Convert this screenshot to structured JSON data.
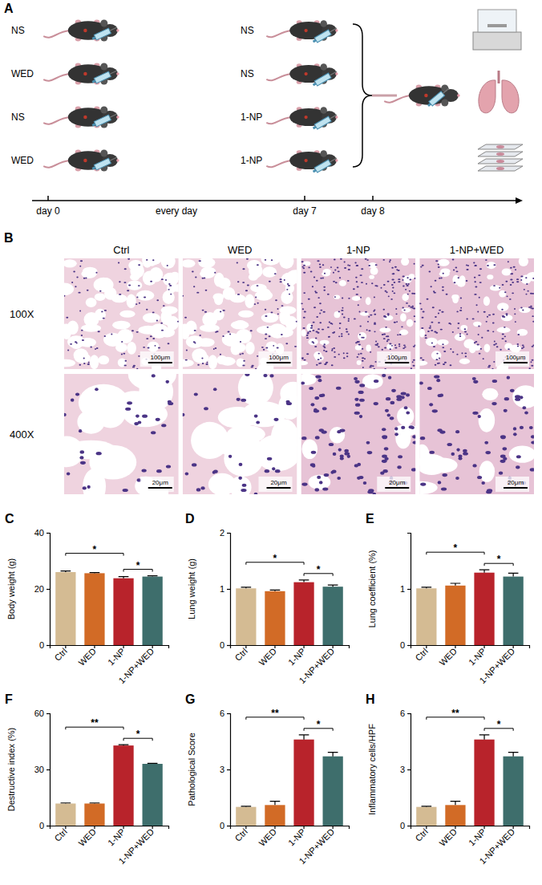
{
  "panel_labels": [
    "A",
    "B",
    "C",
    "D",
    "E",
    "F",
    "G",
    "H"
  ],
  "diagram": {
    "groups_pretreatment": [
      "NS",
      "WED",
      "NS",
      "WED"
    ],
    "groups_challenge": [
      "NS",
      "NS",
      "1-NP",
      "1-NP"
    ],
    "timeline": [
      "day 0",
      "every day",
      "day 7",
      "day 8"
    ]
  },
  "images": {
    "columns": [
      "Ctrl",
      "WED",
      "1-NP",
      "1-NP+WED"
    ],
    "rows": [
      "100X",
      "400X"
    ],
    "scale_bars": [
      "100μm",
      "20μm"
    ]
  },
  "chart_data": [
    {
      "type": "bar",
      "y_label": "Body weight (g)",
      "categories": [
        "Ctrl",
        "WED",
        "1-NP",
        "1-NP+WED"
      ],
      "values": [
        26,
        25.6,
        23.8,
        24.4
      ],
      "errors": [
        0.4,
        0.2,
        0.6,
        0.3
      ],
      "colors": [
        "#D4BB93",
        "#D26B26",
        "#B8232B",
        "#3E6E6C"
      ],
      "ylim": [
        0,
        40
      ],
      "yticks": [
        0,
        20,
        40
      ],
      "annotations": [
        {
          "between": [
            "Ctrl",
            "1-NP"
          ],
          "text": "*"
        },
        {
          "between": [
            "1-NP",
            "1-NP+WED"
          ],
          "text": "*"
        }
      ]
    },
    {
      "type": "bar",
      "y_label": "Lung weight (g)",
      "categories": [
        "Ctrl",
        "WED",
        "1-NP",
        "1-NP+WED"
      ],
      "values": [
        1.01,
        0.96,
        1.12,
        1.04
      ],
      "errors": [
        0.02,
        0.02,
        0.04,
        0.03
      ],
      "colors": [
        "#D4BB93",
        "#D26B26",
        "#B8232B",
        "#3E6E6C"
      ],
      "ylim": [
        0,
        2
      ],
      "yticks": [
        0,
        1,
        2
      ],
      "annotations": [
        {
          "between": [
            "Ctrl",
            "1-NP"
          ],
          "text": "*"
        },
        {
          "between": [
            "1-NP",
            "1-NP+WED"
          ],
          "text": "*"
        }
      ]
    },
    {
      "type": "bar",
      "y_label": "Lung coefficient (%)",
      "categories": [
        "Ctrl",
        "WED",
        "1-NP",
        "1-NP+WED"
      ],
      "values": [
        1.01,
        1.06,
        1.29,
        1.22
      ],
      "errors": [
        0.02,
        0.04,
        0.05,
        0.06
      ],
      "colors": [
        "#D4BB93",
        "#D26B26",
        "#B8232B",
        "#3E6E6C"
      ],
      "ylim": [
        0,
        2
      ],
      "yticks": [
        0,
        1
      ],
      "annotations": [
        {
          "between": [
            "Ctrl",
            "1-NP"
          ],
          "text": "*"
        },
        {
          "between": [
            "1-NP",
            "1-NP+WED"
          ],
          "text": "*"
        }
      ]
    },
    {
      "type": "bar",
      "y_label": "Destructive index (%)",
      "categories": [
        "Ctrl",
        "WED",
        "1-NP",
        "1-NP+WED"
      ],
      "values": [
        11.8,
        11.8,
        42.8,
        33
      ],
      "errors": [
        0.3,
        0.3,
        0.4,
        0.3
      ],
      "colors": [
        "#D4BB93",
        "#D26B26",
        "#B8232B",
        "#3E6E6C"
      ],
      "ylim": [
        0,
        60
      ],
      "yticks": [
        0,
        30,
        60
      ],
      "annotations": [
        {
          "between": [
            "Ctrl",
            "1-NP"
          ],
          "text": "**"
        },
        {
          "between": [
            "1-NP",
            "1-NP+WED"
          ],
          "text": "*"
        }
      ]
    },
    {
      "type": "bar",
      "y_label": "Pathological Score",
      "categories": [
        "Ctrl",
        "WED",
        "1-NP",
        "1-NP+WED"
      ],
      "values": [
        1.0,
        1.1,
        4.6,
        3.7
      ],
      "errors": [
        0.03,
        0.2,
        0.25,
        0.22
      ],
      "colors": [
        "#D4BB93",
        "#D26B26",
        "#B8232B",
        "#3E6E6C"
      ],
      "ylim": [
        0,
        6
      ],
      "yticks": [
        0,
        3,
        6
      ],
      "annotations": [
        {
          "between": [
            "Ctrl",
            "1-NP"
          ],
          "text": "**"
        },
        {
          "between": [
            "1-NP",
            "1-NP+WED"
          ],
          "text": "*"
        }
      ]
    },
    {
      "type": "bar",
      "y_label": "Inflammatory cells/HPF",
      "categories": [
        "Ctrl",
        "WED",
        "1-NP",
        "1-NP+WED"
      ],
      "values": [
        1.0,
        1.1,
        4.6,
        3.7
      ],
      "errors": [
        0.03,
        0.2,
        0.25,
        0.22
      ],
      "colors": [
        "#D4BB93",
        "#D26B26",
        "#B8232B",
        "#3E6E6C"
      ],
      "ylim": [
        0,
        6
      ],
      "yticks": [
        0,
        3,
        6
      ],
      "annotations": [
        {
          "between": [
            "Ctrl",
            "1-NP"
          ],
          "text": "**"
        },
        {
          "between": [
            "1-NP",
            "1-NP+WED"
          ],
          "text": "*"
        }
      ]
    }
  ]
}
